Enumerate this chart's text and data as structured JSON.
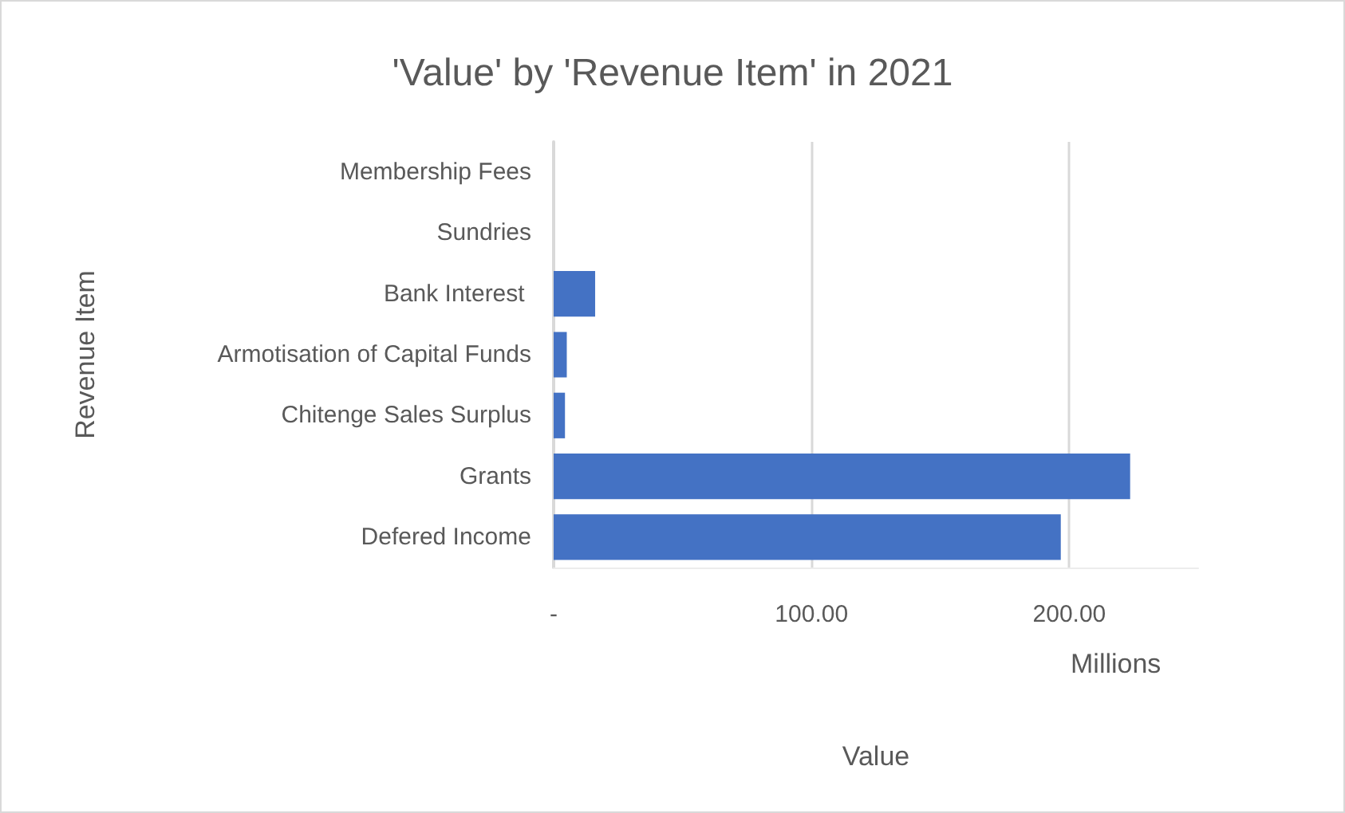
{
  "chart_data": {
    "type": "bar",
    "orientation": "horizontal",
    "title": "'Value' by 'Revenue Item' in 2021",
    "xlabel": "Value",
    "ylabel": "Revenue Item",
    "categories": [
      "Membership Fees",
      "Sundries",
      "Bank Interest ",
      "Armotisation of Capital Funds",
      "Chitenge Sales Surplus",
      "Grants",
      "Defered Income"
    ],
    "values": [
      0,
      0,
      16.1,
      5.1,
      4.4,
      223.6,
      196.7
    ],
    "color": "#4472c4",
    "xlim": [
      0,
      250
    ],
    "xticks": [
      {
        "value": 0,
        "label": "-"
      },
      {
        "value": 100,
        "label": "100.00"
      },
      {
        "value": 200,
        "label": "200.00"
      }
    ],
    "annotations": [
      "Millions"
    ],
    "grid": "x"
  }
}
